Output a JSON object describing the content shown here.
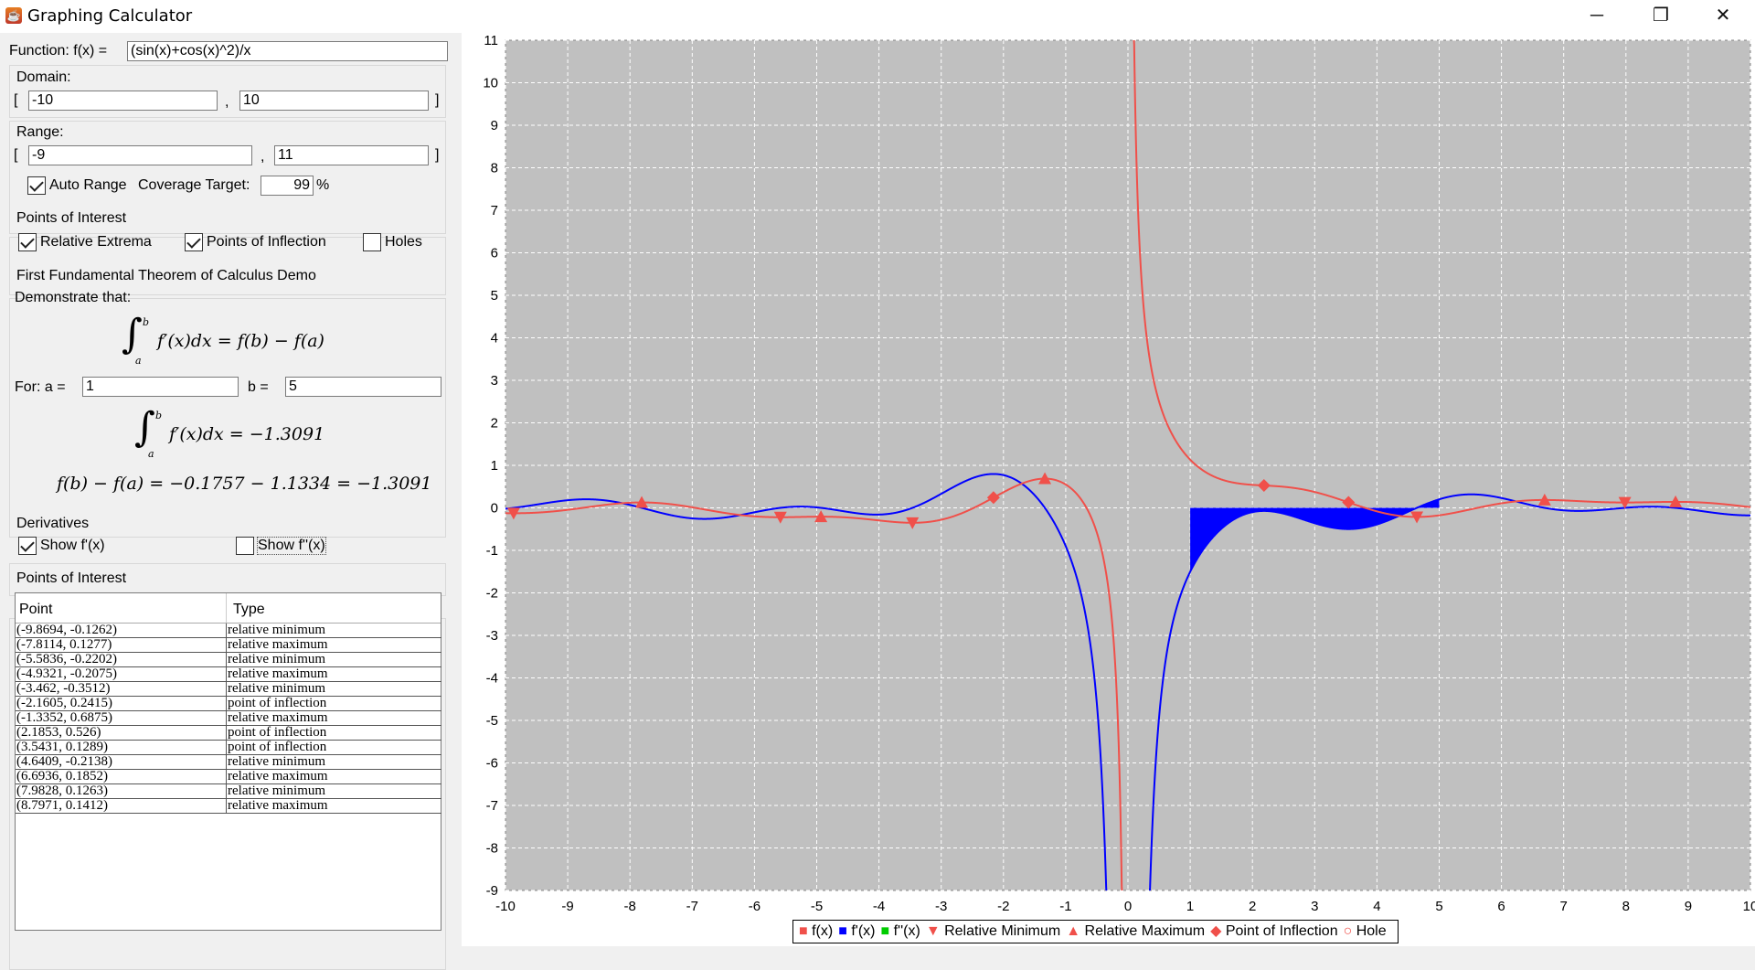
{
  "window": {
    "title": "Graphing Calculator",
    "minimize": "─",
    "maximize": "❐",
    "close": "✕"
  },
  "function": {
    "label": "Function:  f(x) =",
    "value": "(sin(x)+cos(x)^2)/x"
  },
  "domain": {
    "label": "Domain:",
    "open": "[",
    "close": "]",
    "comma": ",",
    "min": "-10",
    "max": "10"
  },
  "range": {
    "label": "Range:",
    "open": "[",
    "close": "]",
    "comma": ",",
    "min": "-9",
    "max": "11",
    "auto_range_label": "Auto Range",
    "auto_range_checked": true,
    "coverage_label": "Coverage Target:",
    "coverage_value": "99",
    "coverage_unit": "%"
  },
  "points_of_interest": {
    "label": "Points of Interest",
    "relative_extrema": "Relative Extrema",
    "relative_extrema_checked": true,
    "inflection": "Points of Inflection",
    "inflection_checked": true,
    "holes": "Holes",
    "holes_checked": false
  },
  "ftc": {
    "label": "First Fundamental Theorem of Calculus Demo",
    "demonstrate": "Demonstrate that:",
    "formula": "f′(x)dx = f(b) − f(a)",
    "upper": "b",
    "lower": "a",
    "for_label": "For:  a =",
    "a_value": "1",
    "b_label": "b =",
    "b_value": "5",
    "integral_result": "f′(x)dx = −1.3091",
    "difference": "f(b) − f(a) = −0.1757 − 1.1334 = −1.3091"
  },
  "derivatives": {
    "label": "Derivatives",
    "show_f1": "Show f'(x)",
    "show_f1_checked": true,
    "show_f2": "Show f''(x)",
    "show_f2_checked": false
  },
  "poi_table": {
    "label": "Points of Interest",
    "columns": [
      "Point",
      "Type"
    ],
    "rows": [
      [
        "(-9.8694, -0.1262)",
        "relative minimum"
      ],
      [
        "(-7.8114, 0.1277)",
        "relative maximum"
      ],
      [
        "(-5.5836, -0.2202)",
        "relative minimum"
      ],
      [
        "(-4.9321, -0.2075)",
        "relative maximum"
      ],
      [
        "(-3.462, -0.3512)",
        "relative minimum"
      ],
      [
        "(-2.1605, 0.2415)",
        "point of inflection"
      ],
      [
        "(-1.3352, 0.6875)",
        "relative maximum"
      ],
      [
        "(2.1853, 0.526)",
        "point of inflection"
      ],
      [
        "(3.5431, 0.1289)",
        "point of inflection"
      ],
      [
        "(4.6409, -0.2138)",
        "relative minimum"
      ],
      [
        "(6.6936, 0.1852)",
        "relative maximum"
      ],
      [
        "(7.9828, 0.1263)",
        "relative minimum"
      ],
      [
        "(8.7971, 0.1412)",
        "relative maximum"
      ]
    ]
  },
  "chart_data": {
    "type": "line",
    "function": "(sin(x)+cos(x)^2)/x",
    "xlim": [
      -10,
      10
    ],
    "ylim": [
      -9,
      11
    ],
    "x_ticks": [
      -10,
      -9,
      -8,
      -7,
      -6,
      -5,
      -4,
      -3,
      -2,
      -1,
      0,
      1,
      2,
      3,
      4,
      5,
      6,
      7,
      8,
      9,
      10
    ],
    "y_ticks": [
      -9,
      -8,
      -7,
      -6,
      -5,
      -4,
      -3,
      -2,
      -1,
      0,
      1,
      2,
      3,
      4,
      5,
      6,
      7,
      8,
      9,
      10,
      11
    ],
    "grid": true,
    "shaded_integral": {
      "a": 1,
      "b": 5,
      "series": "f'(x)"
    },
    "colors": {
      "f": "#f0504a",
      "fprime": "#0000ff",
      "fsecond": "#00cc00",
      "background": "#c0c0c0"
    },
    "markers": {
      "relative_minimum": [
        [
          -9.8694,
          -0.1262
        ],
        [
          -5.5836,
          -0.2202
        ],
        [
          -3.462,
          -0.3512
        ],
        [
          4.6409,
          -0.2138
        ],
        [
          7.9828,
          0.1263
        ]
      ],
      "relative_maximum": [
        [
          -7.8114,
          0.1277
        ],
        [
          -4.9321,
          -0.2075
        ],
        [
          -1.3352,
          0.6875
        ],
        [
          6.6936,
          0.1852
        ],
        [
          8.7971,
          0.1412
        ]
      ],
      "point_of_inflection": [
        [
          -2.1605,
          0.2415
        ],
        [
          2.1853,
          0.526
        ],
        [
          3.5431,
          0.1289
        ]
      ]
    },
    "legend": [
      "f(x)",
      "f'(x)",
      "f''(x)",
      "Relative Minimum",
      "Relative Maximum",
      "Point of Inflection",
      "Hole"
    ],
    "legend_placement": "bottom"
  }
}
